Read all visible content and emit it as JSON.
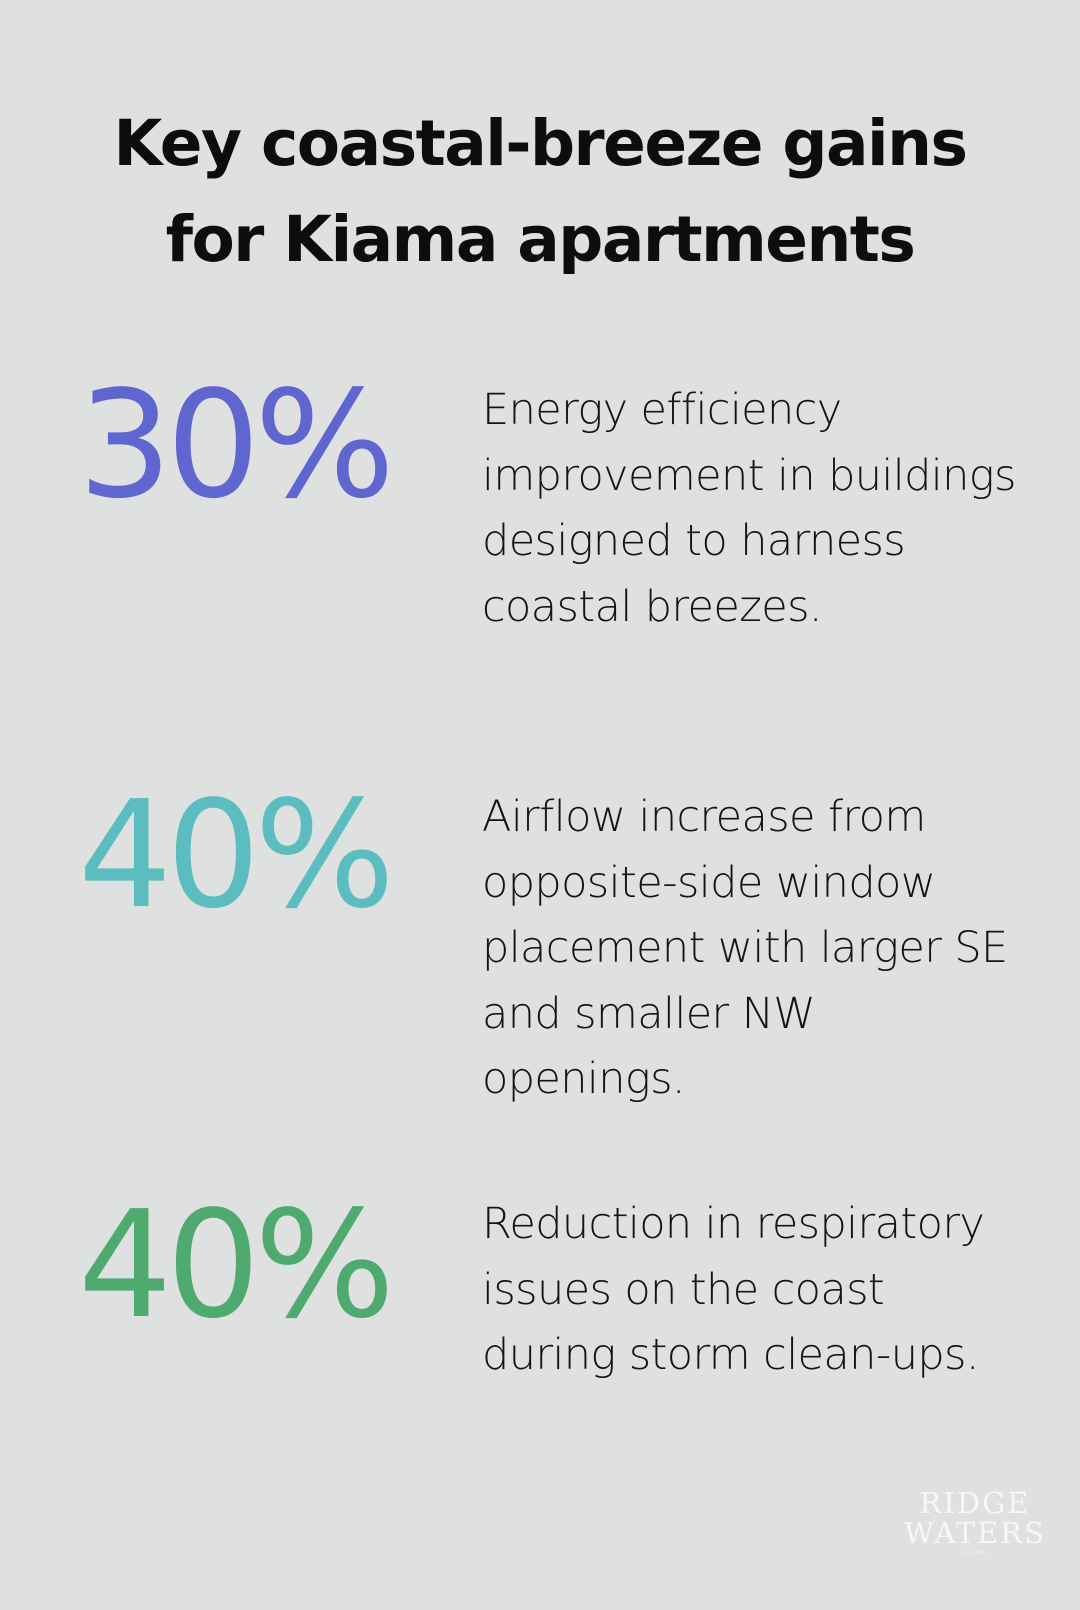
{
  "title": {
    "line1": "Key coastal-breeze gains",
    "line2": "for Kiama apartments"
  },
  "stats": [
    {
      "value": "30%",
      "color": "#6066d0",
      "description": "Energy efficiency improvement in buildings designed to harness coastal breezes."
    },
    {
      "value": "40%",
      "color": "#5bbdbf",
      "description": "Airflow increase from opposite-side window placement with larger SE and smaller NW openings."
    },
    {
      "value": "40%",
      "color": "#4eaa6f",
      "description": "Reduction in respiratory issues on the coast during storm clean-ups."
    }
  ],
  "logo": {
    "line1": "RIDGE",
    "line2": "WATERS",
    "sub": "KIAMA"
  },
  "colors": {
    "background": "#dfe1e0",
    "text": "#111111",
    "logo": "#f7f7f7"
  }
}
